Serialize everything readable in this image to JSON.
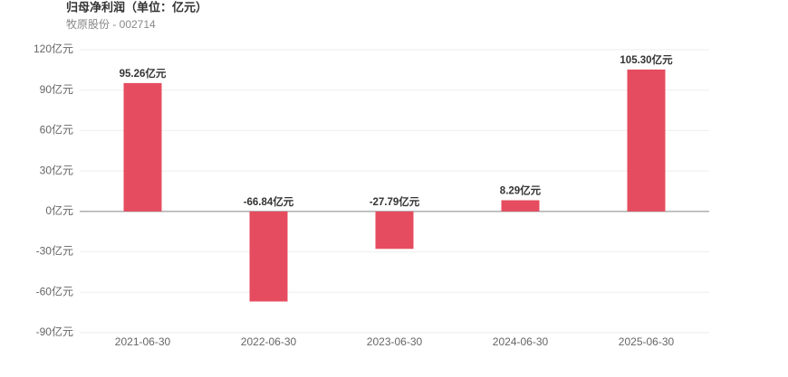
{
  "chart_data": {
    "type": "bar",
    "title": "归母净利润（单位：亿元）",
    "subtitle": "牧原股份 - 002714",
    "categories": [
      "2021-06-30",
      "2022-06-30",
      "2023-06-30",
      "2024-06-30",
      "2025-06-30"
    ],
    "values": [
      95.26,
      -66.84,
      -27.79,
      8.29,
      105.3
    ],
    "value_labels": [
      "95.26亿元",
      "-66.84亿元",
      "-27.79亿元",
      "8.29亿元",
      "105.30亿元"
    ],
    "color": "#e64c5f",
    "ylim": [
      -90,
      120
    ],
    "yticks": [
      {
        "value": 120,
        "label": "120亿元"
      },
      {
        "value": 90,
        "label": "90亿元"
      },
      {
        "value": 60,
        "label": "60亿元"
      },
      {
        "value": 30,
        "label": "30亿元"
      },
      {
        "value": 0,
        "label": "0亿元"
      },
      {
        "value": -30,
        "label": "-30亿元"
      },
      {
        "value": -60,
        "label": "-60亿元"
      },
      {
        "value": -90,
        "label": "-90亿元"
      }
    ],
    "grid": true
  }
}
